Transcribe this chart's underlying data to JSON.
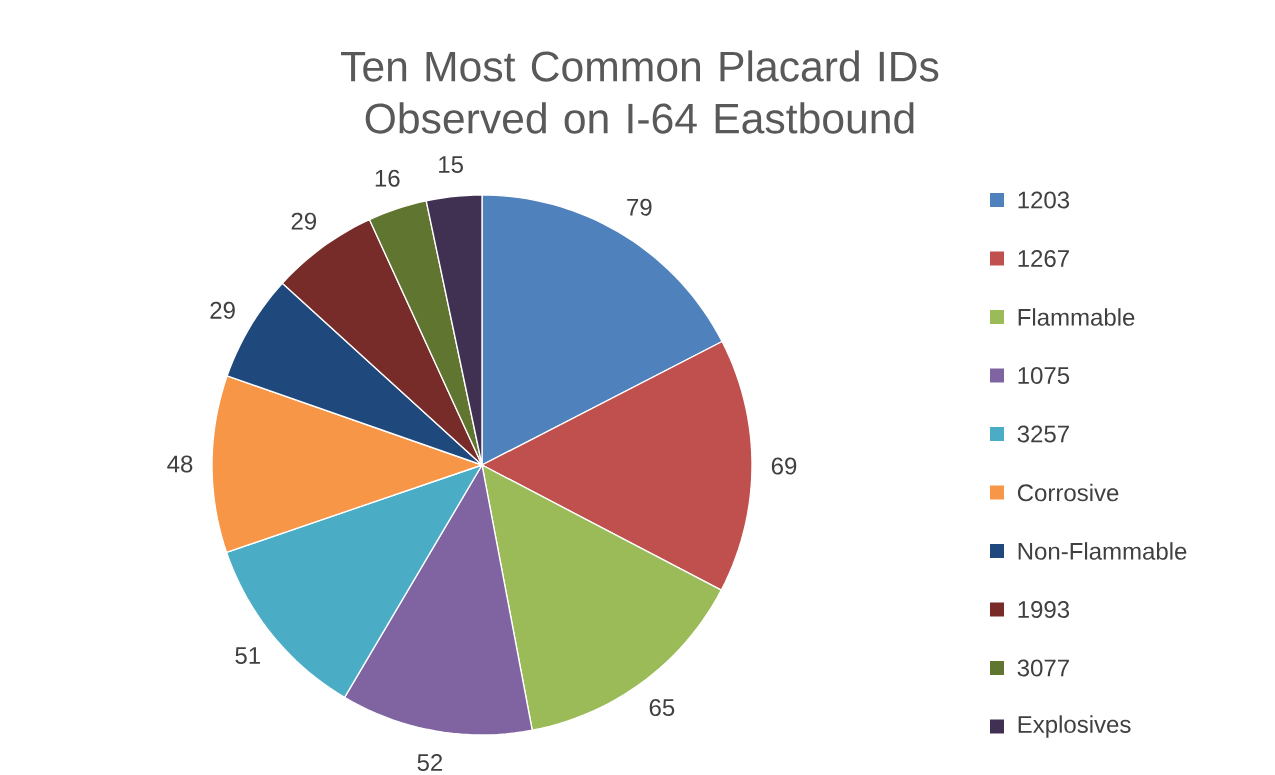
{
  "chart_data": {
    "type": "pie",
    "title": "Ten Most Common Placard IDs Observed on I-64 Eastbound",
    "categories": [
      "1203",
      "1267",
      "Flammable",
      "1075",
      "3257",
      "Corrosive",
      "Non-Flammable",
      "1993",
      "3077",
      "Explosives"
    ],
    "values": [
      79,
      69,
      65,
      52,
      51,
      48,
      29,
      29,
      16,
      15
    ],
    "colors": [
      "#4f81bd",
      "#c0504d",
      "#9bbb59",
      "#8064a2",
      "#4bacc6",
      "#f79646",
      "#1f497d",
      "#772c2a",
      "#5f7530",
      "#403152"
    ],
    "legend": "right",
    "data_labels": true
  }
}
